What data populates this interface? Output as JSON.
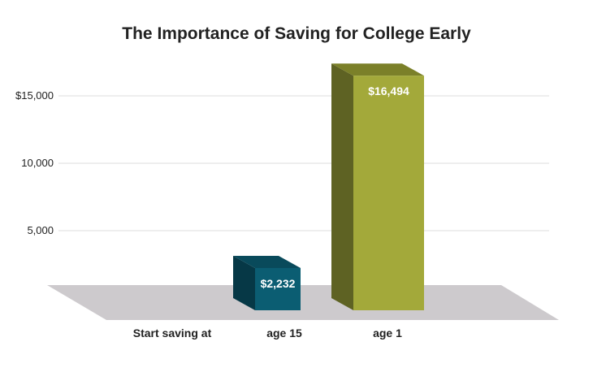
{
  "chart_data": {
    "type": "bar",
    "title": "The Importance of Saving for College Early",
    "xlabel": "Start saving at",
    "ylabel": "",
    "categories": [
      "age 15",
      "age 1"
    ],
    "values": [
      2232,
      16494
    ],
    "data_labels": [
      "$2,232",
      "$16,494"
    ],
    "yticks": [
      15000,
      10000,
      5000
    ],
    "ytick_labels": [
      "$15,000",
      "10,000",
      "5,000"
    ],
    "ylim": [
      0,
      16500
    ],
    "grid": true,
    "legend": "none",
    "colors": {
      "age 15": {
        "front": "#0b5d72",
        "side": "#063846",
        "top": "#094a5b"
      },
      "age 1": {
        "front": "#a3a93a",
        "side": "#5e6223",
        "top": "#7b8029"
      },
      "floor": "#cdcacd",
      "grid": "#dddddd"
    }
  }
}
